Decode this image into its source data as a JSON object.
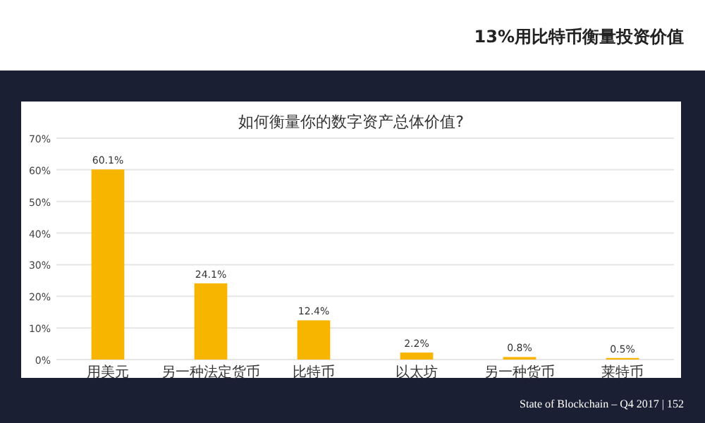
{
  "chart_data": {
    "type": "bar",
    "title": "如何衡量你的数字资产总体价值?",
    "categories": [
      "用美元",
      "另一种法定货币",
      "比特币",
      "以太坊",
      "另一种货币",
      "莱特币"
    ],
    "values": [
      60.1,
      24.1,
      12.4,
      2.2,
      0.8,
      0.5
    ],
    "value_labels": [
      "60.1%",
      "24.1%",
      "12.4%",
      "2.2%",
      "0.8%",
      "0.5%"
    ],
    "color": "#f7b500",
    "ylim": [
      0,
      70
    ],
    "yticks": [
      {
        "value": 0,
        "label": "0%"
      },
      {
        "value": 10,
        "label": "10%"
      },
      {
        "value": 20,
        "label": "20%"
      },
      {
        "value": 30,
        "label": "30%"
      },
      {
        "value": 40,
        "label": "40%"
      },
      {
        "value": 50,
        "label": "50%"
      },
      {
        "value": 60,
        "label": "60%"
      },
      {
        "value": 70,
        "label": "70%"
      }
    ],
    "grid": "y",
    "annotations": [
      "13%用比特币衡量投资价值",
      "State of Blockchain – Q4 2017 | 152"
    ]
  }
}
